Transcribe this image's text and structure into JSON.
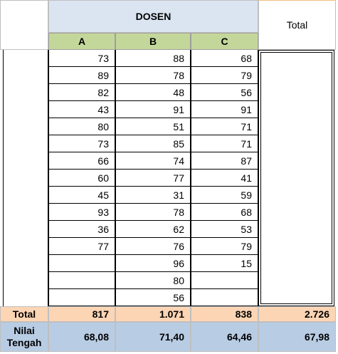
{
  "header": {
    "group_label": "DOSEN",
    "total_label": "Total",
    "columns": [
      "A",
      "B",
      "C"
    ]
  },
  "rows": [
    [
      "73",
      "88",
      "68"
    ],
    [
      "89",
      "78",
      "79"
    ],
    [
      "82",
      "48",
      "56"
    ],
    [
      "43",
      "91",
      "91"
    ],
    [
      "80",
      "51",
      "71"
    ],
    [
      "73",
      "85",
      "71"
    ],
    [
      "66",
      "74",
      "87"
    ],
    [
      "60",
      "77",
      "41"
    ],
    [
      "45",
      "31",
      "59"
    ],
    [
      "93",
      "78",
      "68"
    ],
    [
      "36",
      "62",
      "53"
    ],
    [
      "77",
      "76",
      "79"
    ],
    [
      "",
      "96",
      "15"
    ],
    [
      "",
      "80",
      ""
    ],
    [
      "",
      "56",
      ""
    ]
  ],
  "footer": {
    "total_label": "Total",
    "totals": [
      "817",
      "1.071",
      "838",
      "2.726"
    ],
    "mean_label_1": "Nilai",
    "mean_label_2": "Tengah",
    "means": [
      "68,08",
      "71,40",
      "64,46",
      "67,98"
    ]
  },
  "colors": {
    "header_bg": "#dbe5f1",
    "subheader_bg": "#c4d79b",
    "total_row_bg": "#fcd5b4",
    "mean_row_bg": "#b8cce4"
  }
}
